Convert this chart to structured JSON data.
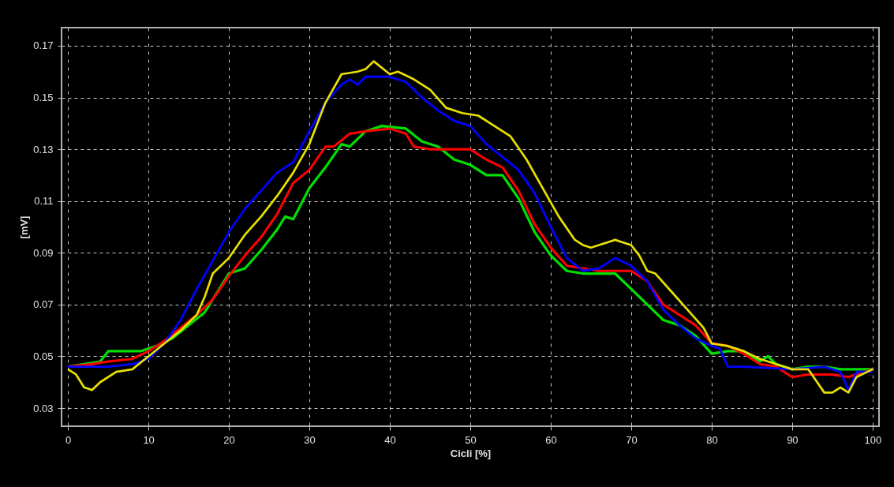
{
  "chart_data": {
    "type": "line",
    "xlabel": "Cicli [%]",
    "ylabel": "[mV]",
    "xlim": [
      -0.8,
      100.8
    ],
    "ylim": [
      0.023,
      0.177
    ],
    "xticks": [
      0,
      10,
      20,
      30,
      40,
      50,
      60,
      70,
      80,
      90,
      100
    ],
    "yticks": [
      0.03,
      0.05,
      0.07,
      0.09,
      0.11,
      0.13,
      0.15,
      0.17
    ],
    "grid": true,
    "legend": false,
    "marker": "none",
    "line_style": "solid",
    "series": [
      {
        "color": "#00e000",
        "x": [
          0,
          2,
          4,
          5,
          9,
          11,
          13,
          15,
          17,
          19,
          20,
          22,
          24,
          26,
          27,
          28,
          30,
          32,
          34,
          35,
          37,
          39,
          42,
          44,
          46,
          48,
          50,
          52,
          54,
          56,
          58,
          60,
          62,
          64,
          66,
          68,
          70,
          72,
          74,
          76,
          78,
          80,
          82,
          84,
          86,
          87,
          88,
          90,
          92,
          94,
          96,
          100
        ],
        "values": [
          0.046,
          0.047,
          0.048,
          0.052,
          0.052,
          0.054,
          0.057,
          0.062,
          0.067,
          0.077,
          0.082,
          0.084,
          0.091,
          0.099,
          0.104,
          0.103,
          0.115,
          0.123,
          0.132,
          0.131,
          0.137,
          0.139,
          0.138,
          0.133,
          0.131,
          0.126,
          0.124,
          0.12,
          0.12,
          0.111,
          0.098,
          0.089,
          0.083,
          0.082,
          0.082,
          0.082,
          0.076,
          0.07,
          0.064,
          0.062,
          0.058,
          0.051,
          0.052,
          0.052,
          0.048,
          0.05,
          0.047,
          0.045,
          0.046,
          0.046,
          0.045,
          0.045
        ]
      },
      {
        "color": "#ff0000",
        "x": [
          0,
          3,
          5,
          8,
          10,
          12,
          14,
          16,
          18,
          20,
          22,
          24,
          26,
          28,
          30,
          32,
          33,
          35,
          37,
          40,
          42,
          43,
          45,
          50,
          52,
          54,
          56,
          58,
          60,
          62,
          64,
          66,
          70,
          72,
          74,
          76,
          78,
          80,
          82,
          84,
          86,
          88,
          90,
          92,
          95,
          97,
          98,
          100
        ],
        "values": [
          0.046,
          0.047,
          0.048,
          0.049,
          0.052,
          0.056,
          0.061,
          0.066,
          0.072,
          0.081,
          0.089,
          0.096,
          0.105,
          0.117,
          0.122,
          0.131,
          0.131,
          0.136,
          0.137,
          0.138,
          0.136,
          0.131,
          0.13,
          0.13,
          0.126,
          0.123,
          0.114,
          0.101,
          0.092,
          0.085,
          0.084,
          0.083,
          0.083,
          0.079,
          0.07,
          0.066,
          0.062,
          0.055,
          0.054,
          0.051,
          0.047,
          0.046,
          0.042,
          0.043,
          0.043,
          0.042,
          0.043,
          0.045
        ]
      },
      {
        "color": "#0000ff",
        "x": [
          0,
          5,
          8,
          10,
          12,
          14,
          16,
          18,
          20,
          22,
          24,
          26,
          28,
          30,
          32,
          34,
          35,
          36,
          37,
          40,
          42,
          44,
          46,
          48,
          50,
          52,
          54,
          56,
          58,
          60,
          62,
          64,
          66,
          68,
          70,
          72,
          74,
          76,
          78,
          80,
          81,
          82,
          84,
          90,
          94,
          96,
          97,
          98,
          100
        ],
        "values": [
          0.046,
          0.046,
          0.047,
          0.049,
          0.055,
          0.064,
          0.076,
          0.087,
          0.098,
          0.107,
          0.114,
          0.121,
          0.125,
          0.137,
          0.148,
          0.155,
          0.157,
          0.155,
          0.158,
          0.158,
          0.156,
          0.15,
          0.145,
          0.141,
          0.139,
          0.132,
          0.127,
          0.122,
          0.113,
          0.1,
          0.088,
          0.083,
          0.084,
          0.088,
          0.085,
          0.079,
          0.068,
          0.062,
          0.057,
          0.054,
          0.053,
          0.046,
          0.046,
          0.045,
          0.046,
          0.044,
          0.037,
          0.044,
          0.044
        ]
      },
      {
        "color": "#e8e000",
        "x": [
          0,
          1,
          2,
          3,
          4,
          6,
          8,
          10,
          12,
          14,
          16,
          17,
          18,
          20,
          22,
          24,
          26,
          28,
          30,
          32,
          34,
          36,
          37,
          38,
          40,
          41,
          43,
          45,
          47,
          49,
          51,
          53,
          55,
          57,
          59,
          61,
          63,
          64,
          65,
          67,
          68,
          69,
          70,
          71,
          72,
          73,
          75,
          77,
          79,
          80,
          82,
          84,
          86,
          88,
          90,
          92,
          94,
          95,
          96,
          97,
          98,
          100
        ],
        "values": [
          0.045,
          0.043,
          0.038,
          0.037,
          0.04,
          0.044,
          0.045,
          0.05,
          0.055,
          0.06,
          0.066,
          0.073,
          0.082,
          0.088,
          0.097,
          0.104,
          0.112,
          0.121,
          0.132,
          0.148,
          0.159,
          0.16,
          0.161,
          0.164,
          0.159,
          0.16,
          0.157,
          0.153,
          0.146,
          0.144,
          0.143,
          0.139,
          0.135,
          0.126,
          0.115,
          0.104,
          0.095,
          0.093,
          0.092,
          0.094,
          0.095,
          0.094,
          0.093,
          0.089,
          0.083,
          0.082,
          0.075,
          0.068,
          0.061,
          0.055,
          0.054,
          0.052,
          0.049,
          0.047,
          0.045,
          0.045,
          0.036,
          0.036,
          0.038,
          0.036,
          0.042,
          0.045
        ]
      }
    ]
  }
}
